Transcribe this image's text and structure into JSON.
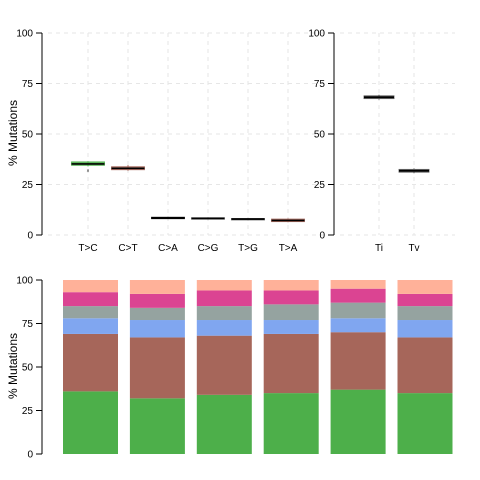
{
  "chart_data": [
    {
      "type": "box",
      "ylabel": "% Mutations",
      "ylim": [
        0,
        100
      ],
      "yticks": [
        "0",
        "25",
        "50",
        "75",
        "100"
      ],
      "grid": true,
      "categories": [
        "T>C",
        "C>T",
        "C>A",
        "C>G",
        "T>G",
        "T>A"
      ],
      "colors": [
        "#4daf4a",
        "#a6665a",
        "#000000",
        "#777777",
        "#555555",
        "#a6665a"
      ],
      "boxes": [
        {
          "q1": 34.5,
          "median": 35.2,
          "q3": 36.2,
          "min": 34.0,
          "max": 36.5,
          "outliers": [
            32.0
          ]
        },
        {
          "q1": 32.3,
          "median": 33.0,
          "q3": 33.8,
          "min": 31.8,
          "max": 34.6,
          "outliers": []
        },
        {
          "q1": 8.2,
          "median": 8.5,
          "q3": 8.8,
          "min": 8.0,
          "max": 9.0,
          "outliers": []
        },
        {
          "q1": 7.8,
          "median": 8.2,
          "q3": 8.6,
          "min": 7.6,
          "max": 8.8,
          "outliers": []
        },
        {
          "q1": 7.6,
          "median": 7.9,
          "q3": 8.2,
          "min": 7.4,
          "max": 8.4,
          "outliers": []
        },
        {
          "q1": 6.6,
          "median": 7.2,
          "q3": 7.9,
          "min": 6.3,
          "max": 8.2,
          "outliers": []
        }
      ]
    },
    {
      "type": "box",
      "ylim": [
        0,
        100
      ],
      "yticks": [
        "0",
        "25",
        "50",
        "75",
        "100"
      ],
      "grid": true,
      "categories": [
        "Ti",
        "Tv"
      ],
      "colors": [
        "#555555",
        "#555555"
      ],
      "boxes": [
        {
          "q1": 67.5,
          "median": 68.2,
          "q3": 68.9,
          "min": 67.0,
          "max": 69.4,
          "outliers": []
        },
        {
          "q1": 31.1,
          "median": 31.8,
          "q3": 32.5,
          "min": 30.6,
          "max": 33.0,
          "outliers": []
        }
      ]
    },
    {
      "type": "bar",
      "stacked": true,
      "ylabel": "% Mutations",
      "ylim": [
        0,
        100
      ],
      "yticks": [
        "0",
        "25",
        "50",
        "75",
        "100"
      ],
      "samples": 6,
      "series": [
        {
          "color": "#4daf4a",
          "values": [
            36,
            32,
            34,
            35,
            37,
            35
          ]
        },
        {
          "color": "#a6665a",
          "values": [
            33,
            35,
            34,
            34,
            33,
            32
          ]
        },
        {
          "color": "#80a6f0",
          "values": [
            9,
            10,
            9,
            8,
            8,
            10
          ]
        },
        {
          "color": "#95a3a0",
          "values": [
            7,
            7,
            8,
            9,
            9,
            8
          ]
        },
        {
          "color": "#db4492",
          "values": [
            8,
            8,
            9,
            8,
            8,
            7
          ]
        },
        {
          "color": "#ffb199",
          "values": [
            7,
            8,
            6,
            6,
            5,
            8
          ]
        }
      ]
    }
  ]
}
